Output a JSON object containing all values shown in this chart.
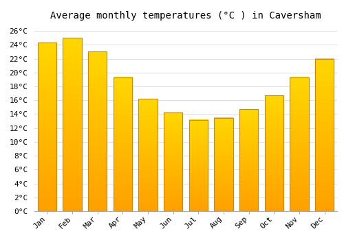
{
  "title": "Average monthly temperatures (°C ) in Caversham",
  "months": [
    "Jan",
    "Feb",
    "Mar",
    "Apr",
    "May",
    "Jun",
    "Jul",
    "Aug",
    "Sep",
    "Oct",
    "Nov",
    "Dec"
  ],
  "values": [
    24.3,
    25.0,
    23.0,
    19.3,
    16.2,
    14.2,
    13.2,
    13.5,
    14.7,
    16.7,
    19.3,
    22.0
  ],
  "bar_color_top": "#FFD700",
  "bar_color_bottom": "#FFA000",
  "bar_edge_color": "#CC8800",
  "ylim": [
    0,
    27
  ],
  "yticks": [
    0,
    2,
    4,
    6,
    8,
    10,
    12,
    14,
    16,
    18,
    20,
    22,
    24,
    26
  ],
  "background_color": "#FFFFFF",
  "grid_color": "#DDDDDD",
  "title_fontsize": 10,
  "tick_fontsize": 8,
  "font_family": "monospace",
  "bar_width": 0.75
}
